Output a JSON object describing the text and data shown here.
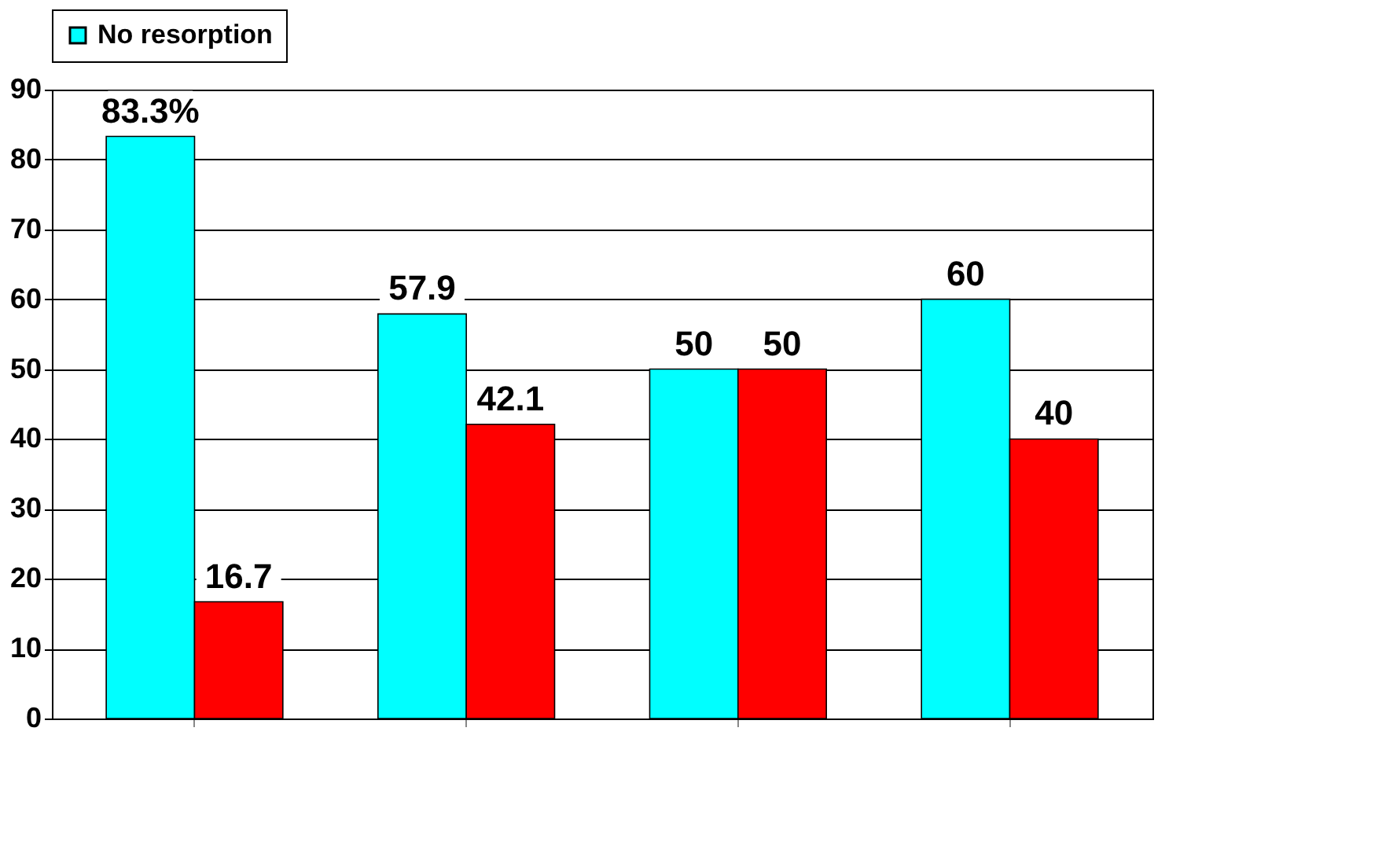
{
  "chart_data": {
    "type": "bar",
    "categories": [
      null,
      null,
      null,
      null
    ],
    "series": [
      {
        "name": "No resorption",
        "color": "#00ffff",
        "values": [
          83.3,
          57.9,
          50,
          60
        ],
        "value_labels": [
          "83.3%",
          "57.9",
          "50",
          "60"
        ]
      },
      {
        "color": "#ff0000",
        "values": [
          16.7,
          42.1,
          50,
          40
        ],
        "value_labels": [
          "16.7",
          "42.1",
          "50",
          "40"
        ]
      }
    ],
    "ylim": [
      0,
      90
    ],
    "yticks": [
      0,
      10,
      20,
      30,
      40,
      50,
      60,
      70,
      80,
      90
    ],
    "grid": "y",
    "legend": "top",
    "tick_labels": "y"
  }
}
